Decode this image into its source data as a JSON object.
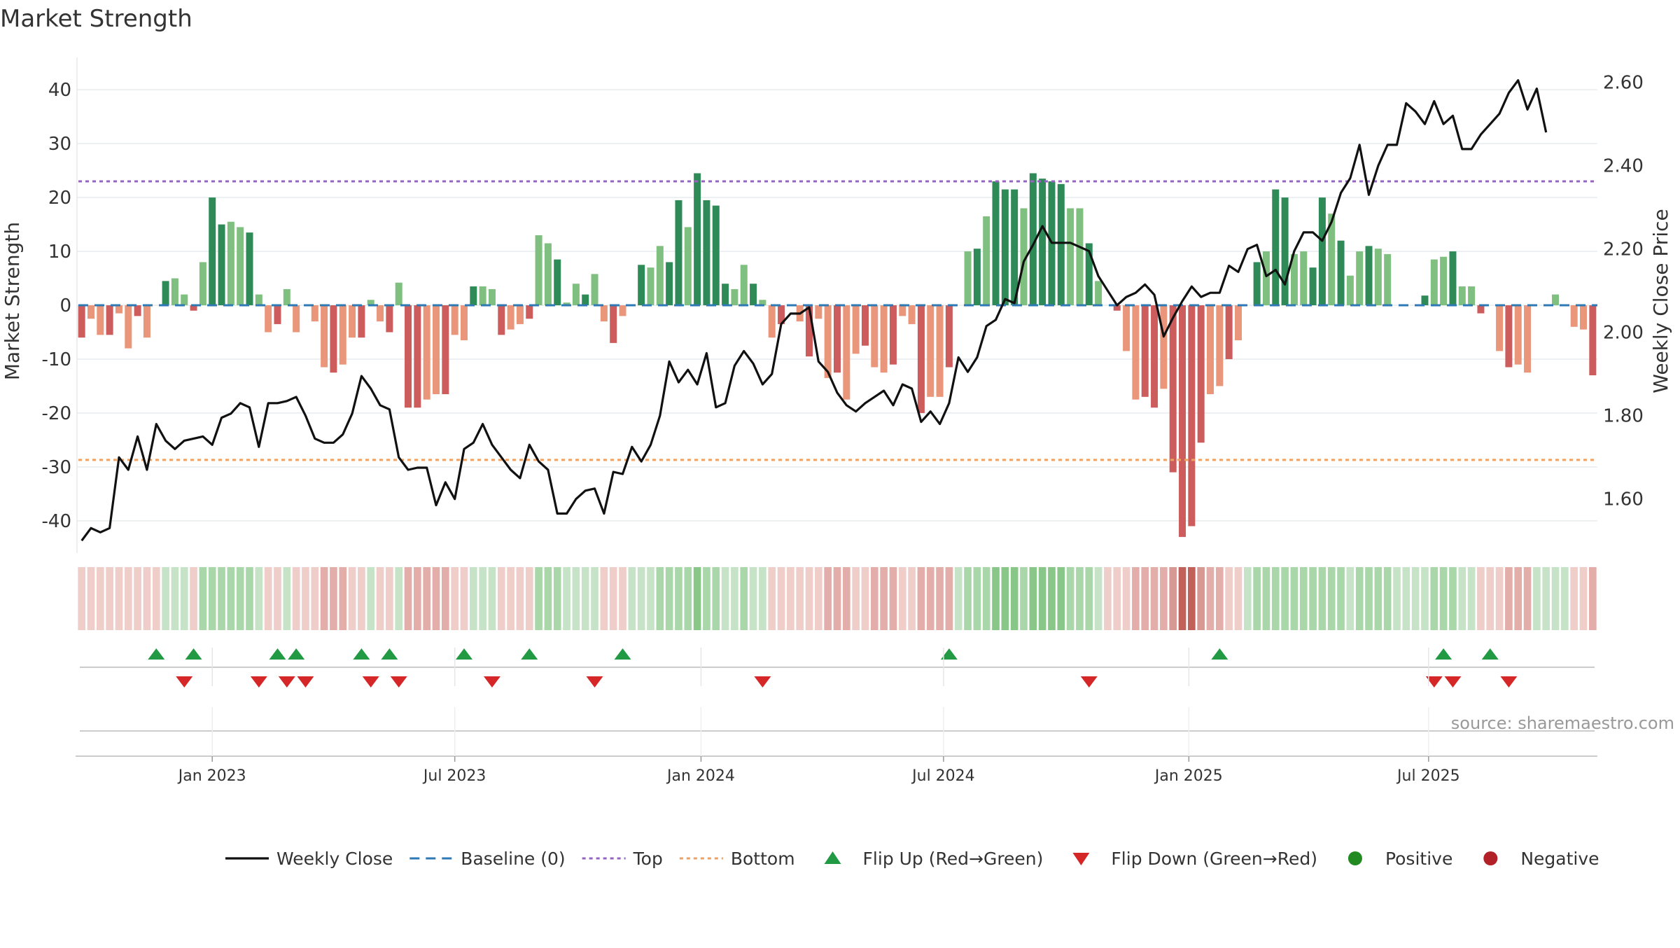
{
  "chart_data": {
    "type": "bar",
    "title": "Market Strength",
    "ylabel_left": "Market Strength",
    "ylabel_right": "Weekly Close Price",
    "source": "source: sharemaestro.com",
    "ylim_left": [
      -46,
      46
    ],
    "ylim_right": [
      1.47,
      2.66
    ],
    "yticks_left": [
      40,
      30,
      20,
      10,
      0,
      -10,
      -20,
      -30,
      -40
    ],
    "yticks_right": [
      "2.60",
      "2.40",
      "2.20",
      "2.00",
      "1.80",
      "1.60"
    ],
    "ytick_right_values": [
      2.6,
      2.4,
      2.2,
      2.0,
      1.8,
      1.6
    ],
    "x_tick_labels": [
      "Jan 2023",
      "Jul 2023",
      "Jan 2024",
      "Jul 2024",
      "Jan 2025",
      "Jul 2025"
    ],
    "x_tick_weeks": [
      14,
      40,
      66.4,
      92.4,
      118.7,
      144.4
    ],
    "top_level": 23,
    "bottom_level": -28.7,
    "strength": [
      -6,
      -2.5,
      -5.5,
      -5.5,
      -1.5,
      -8,
      -2,
      -6,
      0,
      4.5,
      5,
      2,
      -1,
      8,
      20,
      15,
      15.5,
      14.5,
      13.5,
      2,
      -5,
      -3.5,
      3,
      -5,
      0,
      -3,
      -11.5,
      -12.5,
      -11,
      -6,
      -6,
      1,
      -3,
      -5,
      4.2,
      -19,
      -19,
      -17.5,
      -16.5,
      -16.5,
      -5.5,
      -6.5,
      3.5,
      3.5,
      3,
      -5.5,
      -4.5,
      -3.5,
      -2.5,
      13,
      11.5,
      8.5,
      0.5,
      4,
      2,
      5.8,
      -3,
      -7,
      -2,
      0,
      7.5,
      7,
      11,
      8,
      19.5,
      14.5,
      24.5,
      19.5,
      18.5,
      4,
      3,
      7.5,
      4,
      1,
      -6,
      -3.5,
      0,
      -3,
      -9.5,
      -2.5,
      -13.5,
      -12.5,
      -17.5,
      -9,
      -7.5,
      -11.5,
      -12.5,
      -11,
      -2,
      -3.5,
      -20,
      -17,
      -17,
      -11.5,
      0,
      10,
      10.5,
      16.5,
      23,
      21.5,
      21.5,
      18,
      24.5,
      23.5,
      23,
      22.5,
      18,
      18,
      11.5,
      4.5,
      0,
      -1,
      -8.5,
      -17.5,
      -17,
      -19,
      -15.5,
      -31,
      -43,
      -41,
      -25.5,
      -16.5,
      -15,
      -10,
      -6.5,
      0,
      8,
      10,
      21.5,
      20,
      9.5,
      10,
      7,
      20,
      17,
      12,
      5.5,
      10,
      11,
      10.5,
      9.5,
      0,
      0,
      0,
      1.8,
      8.5,
      9,
      10,
      3.5,
      3.5,
      -1.5,
      0,
      -8.5,
      -11.5,
      -11,
      -12.5,
      0,
      0,
      2,
      0,
      -4,
      -4.5,
      -13
    ],
    "close": [
      1.5,
      1.53,
      1.52,
      1.53,
      1.7,
      1.67,
      1.75,
      1.67,
      1.78,
      1.74,
      1.72,
      1.74,
      1.745,
      1.75,
      1.73,
      1.795,
      1.805,
      1.83,
      1.82,
      1.725,
      1.83,
      1.83,
      1.835,
      1.845,
      1.8,
      1.745,
      1.735,
      1.735,
      1.755,
      1.805,
      1.895,
      1.865,
      1.825,
      1.815,
      1.7,
      1.67,
      1.675,
      1.675,
      1.585,
      1.64,
      1.6,
      1.72,
      1.735,
      1.78,
      1.73,
      1.7,
      1.67,
      1.65,
      1.73,
      1.69,
      1.67,
      1.565,
      1.565,
      1.6,
      1.62,
      1.625,
      1.565,
      1.665,
      1.66,
      1.725,
      1.69,
      1.73,
      1.8,
      1.93,
      1.88,
      1.91,
      1.875,
      1.95,
      1.82,
      1.83,
      1.92,
      1.955,
      1.925,
      1.875,
      1.9,
      2.02,
      2.045,
      2.045,
      2.06,
      1.93,
      1.905,
      1.855,
      1.825,
      1.81,
      1.83,
      1.845,
      1.86,
      1.825,
      1.875,
      1.865,
      1.785,
      1.81,
      1.78,
      1.83,
      1.94,
      1.905,
      1.94,
      2.015,
      2.03,
      2.08,
      2.07,
      2.17,
      2.21,
      2.255,
      2.215,
      2.215,
      2.215,
      2.205,
      2.195,
      2.135,
      2.1,
      2.065,
      2.085,
      2.095,
      2.115,
      2.09,
      1.99,
      2.035,
      2.075,
      2.11,
      2.085,
      2.095,
      2.095,
      2.16,
      2.145,
      2.2,
      2.21,
      2.135,
      2.15,
      2.115,
      2.195,
      2.24,
      2.24,
      2.22,
      2.265,
      2.335,
      2.37,
      2.45,
      2.33,
      2.4,
      2.45,
      2.45,
      2.55,
      2.53,
      2.5,
      2.555,
      2.5,
      2.52,
      2.44,
      2.44,
      2.475,
      2.5,
      2.525,
      2.575,
      2.605,
      2.535,
      2.585,
      2.48
    ],
    "background_intensity": [
      -1,
      -1,
      -1,
      -1,
      -1,
      -1,
      -1,
      -1,
      -1,
      1,
      1,
      1,
      -1,
      2,
      2,
      2,
      2,
      2,
      2,
      1,
      -1,
      -1,
      1,
      -1,
      -1,
      -1,
      -2,
      -2,
      -2,
      -1,
      -1,
      1,
      -1,
      -1,
      1,
      -2,
      -2,
      -2,
      -2,
      -2,
      -1,
      -1,
      1,
      1,
      1,
      -1,
      -1,
      -1,
      -1,
      2,
      2,
      2,
      1,
      1,
      1,
      1,
      -1,
      -1,
      -1,
      1,
      1,
      1,
      2,
      2,
      2,
      2,
      3,
      2,
      2,
      1,
      1,
      2,
      1,
      1,
      -1,
      -1,
      -1,
      -1,
      -1,
      -1,
      -2,
      -2,
      -2,
      -1,
      -1,
      -2,
      -2,
      -2,
      -1,
      -1,
      -2,
      -2,
      -2,
      -2,
      1,
      2,
      2,
      2,
      3,
      3,
      3,
      2,
      3,
      3,
      3,
      3,
      2,
      2,
      2,
      1,
      -1,
      -1,
      -1,
      -2,
      -2,
      -2,
      -2,
      -3,
      -4,
      -4,
      -3,
      -2,
      -2,
      -1,
      -1,
      1,
      2,
      2,
      2,
      2,
      2,
      2,
      2,
      2,
      2,
      2,
      1,
      2,
      2,
      2,
      2,
      1,
      1,
      1,
      1,
      2,
      2,
      2,
      1,
      1,
      -1,
      -1,
      -1,
      -2,
      -2,
      -2,
      1,
      1,
      1,
      1,
      -1,
      -1,
      -2
    ],
    "flip_up_weeks": [
      8,
      12,
      21,
      23,
      30,
      33,
      41,
      48,
      58,
      93,
      122,
      146,
      151
    ],
    "flip_down_weeks": [
      11,
      19,
      22,
      24,
      31,
      34,
      44,
      55,
      73,
      108,
      145,
      147,
      153
    ],
    "series": [
      {
        "name": "Market Strength",
        "axis": "left",
        "kind": "bars"
      },
      {
        "name": "Weekly Close",
        "axis": "right",
        "kind": "line",
        "color": "#111111"
      }
    ],
    "legend": [
      {
        "label": "Weekly Close",
        "symbol": "line-solid",
        "color": "#111111"
      },
      {
        "label": "Baseline (0)",
        "symbol": "line-dash",
        "color": "#2f7ab5"
      },
      {
        "label": "Top",
        "symbol": "line-dot",
        "color": "#9467bd"
      },
      {
        "label": "Bottom",
        "symbol": "line-dot",
        "color": "#f0a060"
      },
      {
        "label": "Flip Up (Red→Green)",
        "symbol": "triangle-up",
        "color": "#229a44"
      },
      {
        "label": "Flip Down (Green→Red)",
        "symbol": "triangle-down",
        "color": "#d62728"
      },
      {
        "label": "Positive",
        "symbol": "circle",
        "color": "#218a21"
      },
      {
        "label": "Negative",
        "symbol": "circle",
        "color": "#b22028"
      }
    ],
    "colors": {
      "pos_strong": "#2e8b57",
      "pos_weak": "#7fbf7f",
      "neg_strong": "#cd5c5c",
      "neg_weak": "#e9967a",
      "baseline": "#2f7ab5",
      "top": "#9467bd",
      "bottom": "#f0a060",
      "grid": "#e6ecef",
      "axis": "#cccccc"
    }
  }
}
